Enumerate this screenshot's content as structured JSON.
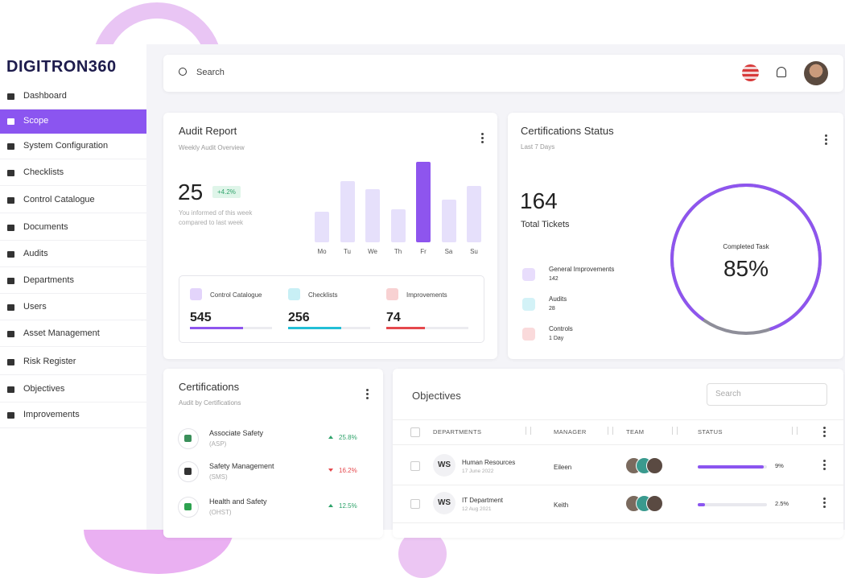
{
  "brand": "DIGITRON360",
  "nav": [
    "Dashboard",
    "Scope",
    "System Configuration",
    "Checklists",
    "Control Catalogue",
    "Documents",
    "Audits",
    "Departments",
    "Users",
    "Asset Management",
    "Risk Register",
    "Objectives",
    "Improvements"
  ],
  "active_nav": 1,
  "search_placeholder": "Search",
  "audit_report": {
    "title": "Audit Report",
    "subtitle": "Weekly Audit Overview",
    "value": 25,
    "change": "+4.2%",
    "note": [
      "You informed of this week",
      "compared to last week"
    ],
    "chart": {
      "categories": [
        "Mo",
        "Tu",
        "We",
        "Th",
        "Fr",
        "Sa",
        "Su"
      ],
      "values": [
        38,
        76,
        66,
        41,
        100,
        53,
        70
      ],
      "colors": [
        "#e6e0fb",
        "#e6e0fb",
        "#e6e0fb",
        "#e6e0fb",
        "#8e55ee",
        "#e6e0fb",
        "#e6e0fb"
      ]
    },
    "stats": [
      {
        "label": "Control Catalogue",
        "value": 545,
        "progress": 65,
        "color": "#8e55ee"
      },
      {
        "label": "Checklists",
        "value": 256,
        "progress": 65,
        "color": "#22bfd6"
      },
      {
        "label": "Improvements",
        "value": 74,
        "progress": 47,
        "color": "#e5484d"
      }
    ]
  },
  "cert_status": {
    "title": "Certifications Status",
    "subtitle": "Last 7 Days",
    "total": 164,
    "total_label": "Total Tickets",
    "items": [
      {
        "label": "General Improvements",
        "value": 142,
        "color": "#8e55ee"
      },
      {
        "label": "Audits",
        "value": 28,
        "color": "#22bfd6"
      },
      {
        "label": "Controls",
        "value": "1 Day",
        "color": "#e5484d"
      }
    ],
    "donut_label": "Completed Task",
    "percent": 85,
    "percent_label": "85%"
  },
  "certifications": {
    "title": "Certifications",
    "subtitle": "Audit by Certifications",
    "rows": [
      {
        "name": "Associate Safety",
        "code": "(ASP)",
        "change": "25.8%",
        "trend": "up"
      },
      {
        "name": "Safety Management",
        "code": "(SMS)",
        "change": "16.2%",
        "trend": "down"
      },
      {
        "name": "Health and Safety",
        "code": "(OHST)",
        "change": "12.5%",
        "trend": "up"
      }
    ]
  },
  "objectives": {
    "title": "Objectives",
    "search_placeholder": "Search",
    "headers": [
      "DEPARTMENTS",
      "MANAGER",
      "TEAM",
      "STATUS"
    ],
    "rows": [
      {
        "initials": "WS",
        "department": "Human Resources",
        "date": "17 June 2022",
        "manager": "Eileen",
        "status": "9%",
        "progress": 95
      },
      {
        "initials": "WS",
        "department": "IT Department",
        "date": "12 Aug 2021",
        "manager": "Keith",
        "status": "2.5%",
        "progress": 10
      }
    ]
  }
}
